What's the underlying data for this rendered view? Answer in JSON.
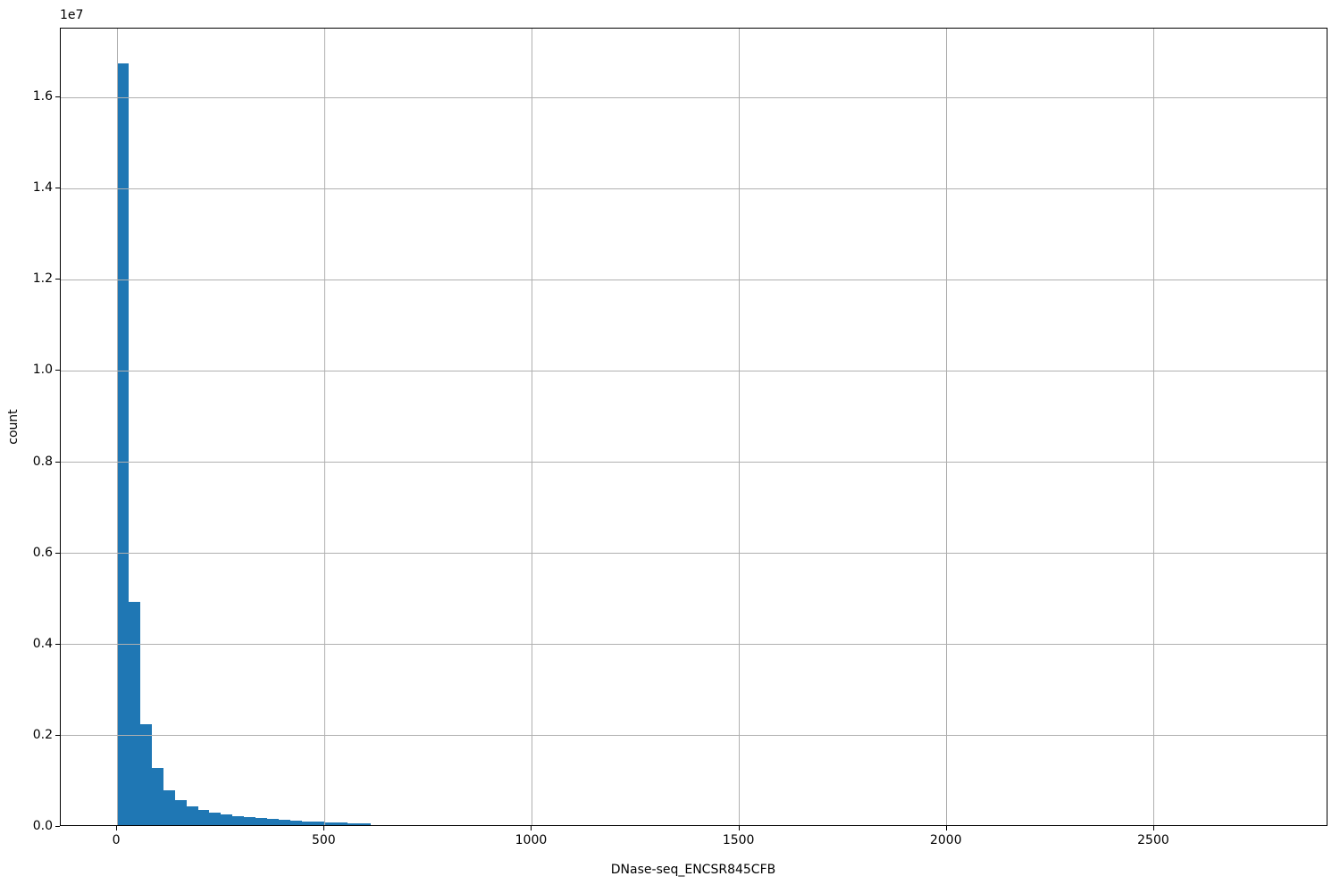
{
  "figure": {
    "background_color": "#ffffff",
    "axis_color": "#000000",
    "text_color": "#000000"
  },
  "chart_data": {
    "type": "bar",
    "subtype": "histogram",
    "title": "",
    "xlabel": "DNase-seq_ENCSR845CFB",
    "ylabel": "count",
    "y_offset_label": "1e7",
    "bar_color": "#1f77b4",
    "grid_color": "#b0b0b0",
    "grid_on": true,
    "legend": null,
    "xlim": [
      -136,
      2920
    ],
    "ylim": [
      0,
      17508000
    ],
    "bin_start": 0,
    "bin_width": 27.8,
    "counts": [
      16700000,
      4900000,
      2210000,
      1250000,
      770000,
      550000,
      410000,
      330000,
      270000,
      233000,
      200000,
      176000,
      153000,
      135000,
      118000,
      101000,
      88000,
      76000,
      66000,
      57000,
      47000,
      38000
    ],
    "x_ticks": [
      {
        "value": 0,
        "label": "0"
      },
      {
        "value": 500,
        "label": "500"
      },
      {
        "value": 1000,
        "label": "1000"
      },
      {
        "value": 1500,
        "label": "1500"
      },
      {
        "value": 2000,
        "label": "2000"
      },
      {
        "value": 2500,
        "label": "2500"
      }
    ],
    "y_ticks": [
      {
        "value": 0,
        "label": "0.0"
      },
      {
        "value": 2000000,
        "label": "0.2"
      },
      {
        "value": 4000000,
        "label": "0.4"
      },
      {
        "value": 6000000,
        "label": "0.6"
      },
      {
        "value": 8000000,
        "label": "0.8"
      },
      {
        "value": 10000000,
        "label": "1.0"
      },
      {
        "value": 12000000,
        "label": "1.2"
      },
      {
        "value": 14000000,
        "label": "1.4"
      },
      {
        "value": 16000000,
        "label": "1.6"
      }
    ]
  }
}
